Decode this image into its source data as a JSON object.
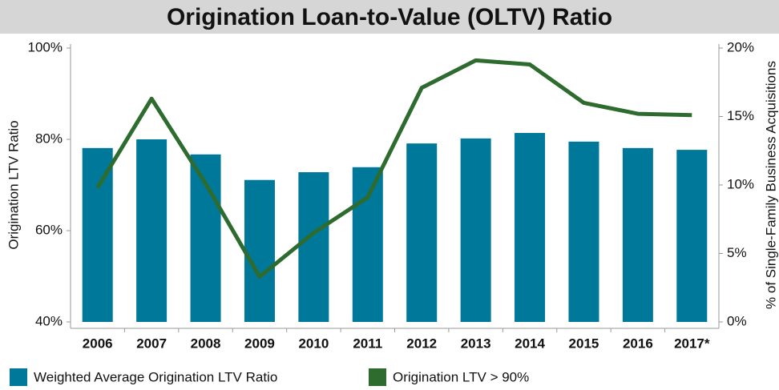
{
  "chart_data": {
    "type": "bar-line",
    "title": "Origination Loan-to-Value (OLTV) Ratio",
    "y_label": "Origination LTV Ratio",
    "y2_label": "% of Single-Family Business Acquisitions",
    "categories": [
      "2006",
      "2007",
      "2008",
      "2009",
      "2010",
      "2011",
      "2012",
      "2013",
      "2014",
      "2015",
      "2016",
      "2017*"
    ],
    "series": [
      {
        "name": "Weighted Average Origination LTV Ratio",
        "color": "#00789a",
        "kind": "bar",
        "values": [
          78.1,
          80.0,
          76.7,
          71.1,
          72.8,
          73.9,
          79.1,
          80.2,
          81.4,
          79.5,
          78.1,
          77.7
        ]
      },
      {
        "name": "Origination LTV > 90%",
        "color": "#2e6b2e",
        "kind": "line",
        "axis": "y2",
        "values": [
          9.8,
          16.3,
          10.1,
          3.3,
          6.5,
          9.1,
          17.1,
          19.1,
          18.8,
          16.0,
          15.2,
          15.1
        ]
      }
    ],
    "ylim": [
      40,
      100
    ],
    "yticks": [
      {
        "value": 40,
        "label": "40%"
      },
      {
        "value": 60,
        "label": "60%"
      },
      {
        "value": 80,
        "label": "80%"
      },
      {
        "value": 100,
        "label": "100%"
      }
    ],
    "y2lim": [
      0,
      20
    ],
    "y2ticks": [
      {
        "value": 0,
        "label": "0%"
      },
      {
        "value": 5,
        "label": "5%"
      },
      {
        "value": 10,
        "label": "10%"
      },
      {
        "value": 15,
        "label": "15%"
      },
      {
        "value": 20,
        "label": "20%"
      }
    ]
  }
}
